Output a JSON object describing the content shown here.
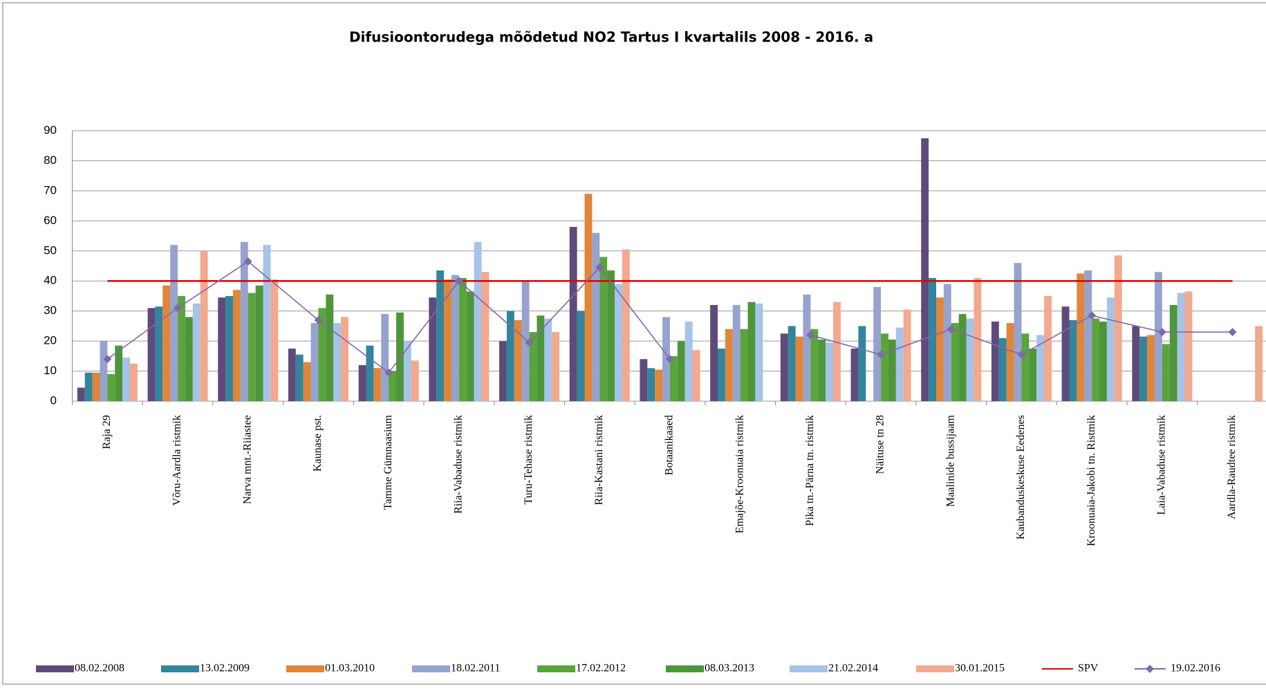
{
  "chart_data": {
    "type": "bar",
    "title": "Difusioontorudega mõõdetud NO2 Tartus I kvartalils 2008  - 2016.  a",
    "categories": [
      "Raja 29",
      "Võru-Aardla ristmik",
      "Narva mnt.-Riiastee",
      "Kaunase pst.",
      "Tamme Gümnaasium",
      "Riia-Vabaduse ristmik",
      "Turu-Tehase ristmik",
      "Riia-Kastani ristmik",
      "Botaanikaaed",
      "Emajõe-Kroonuaia ristmik",
      "Pika tn.-Pärna tn. ristmik",
      "Näituse tn 28",
      "Maalinide bussijaam",
      "Kaubanduskeskuse Eedenes",
      "Kroonuaia-Jakobi tn. Ristmik",
      "Laia-Vabaduse ristmik",
      "Aardla-Raudtee ristmik"
    ],
    "series": [
      {
        "name": "08.02.2008",
        "color": "#604a7b",
        "values": [
          4.5,
          31,
          34.5,
          17.5,
          12,
          34.5,
          20,
          58,
          14,
          32,
          22.5,
          17.5,
          87.5,
          26.5,
          31.5,
          25,
          null
        ]
      },
      {
        "name": "13.02.2009",
        "color": "#31859c",
        "values": [
          9.5,
          31.5,
          35,
          15.5,
          18.5,
          43.5,
          30,
          30,
          11,
          17.5,
          25,
          25,
          41,
          21,
          27,
          21.5,
          null
        ]
      },
      {
        "name": "01.03.2010",
        "color": "#e0853a",
        "values": [
          9.5,
          38.5,
          37,
          13,
          11,
          40.5,
          27,
          69,
          10.5,
          24,
          21.5,
          null,
          34.5,
          26,
          42.5,
          22,
          null
        ]
      },
      {
        "name": "18.02.2011",
        "color": "#95a3ce",
        "values": [
          20,
          52,
          53,
          26,
          29,
          42,
          40,
          56,
          28,
          32,
          35.5,
          38,
          39,
          46,
          43.5,
          43,
          null
        ]
      },
      {
        "name": "17.02.2012",
        "color": "#5aa33d",
        "values": [
          9,
          35,
          36,
          31,
          10,
          41,
          23,
          48,
          15,
          24,
          24,
          22.5,
          26,
          22.5,
          27.5,
          19,
          null
        ]
      },
      {
        "name": "08.03.2013",
        "color": "#4e963a",
        "values": [
          18.5,
          28,
          38.5,
          35.5,
          29.5,
          36.5,
          28.5,
          43.5,
          20,
          33,
          20.5,
          20.5,
          29,
          17.5,
          26.5,
          32,
          null
        ]
      },
      {
        "name": "21.02.2014",
        "color": "#a6c3e8",
        "values": [
          14.5,
          32.5,
          52,
          26,
          20,
          53,
          27.5,
          39,
          26.5,
          32.5,
          19.5,
          24.5,
          27.5,
          22,
          34.5,
          36,
          null
        ]
      },
      {
        "name": "30.01.2015",
        "color": "#f2a98e",
        "values": [
          12.5,
          50,
          40.5,
          28,
          13.5,
          43,
          23,
          50.5,
          17,
          null,
          33,
          30.5,
          41,
          35,
          48.5,
          36.5,
          25
        ]
      },
      {
        "name": "SPV",
        "color": "#e00000",
        "type": "line",
        "values": [
          40,
          40,
          40,
          40,
          40,
          40,
          40,
          40,
          40,
          40,
          40,
          40,
          40,
          40,
          40,
          40,
          40
        ]
      },
      {
        "name": "19.02.2016",
        "color": "#7e6aa8",
        "type": "line",
        "marker": "diamond",
        "values": [
          14,
          31,
          46.5,
          27,
          9.5,
          40,
          19.5,
          44.5,
          14,
          null,
          22,
          15.5,
          24,
          15.5,
          28.5,
          23,
          23
        ]
      }
    ],
    "ylim": [
      0,
      90
    ],
    "yticks": [
      0,
      10,
      20,
      30,
      40,
      50,
      60,
      70,
      80,
      90
    ],
    "grid": true
  }
}
